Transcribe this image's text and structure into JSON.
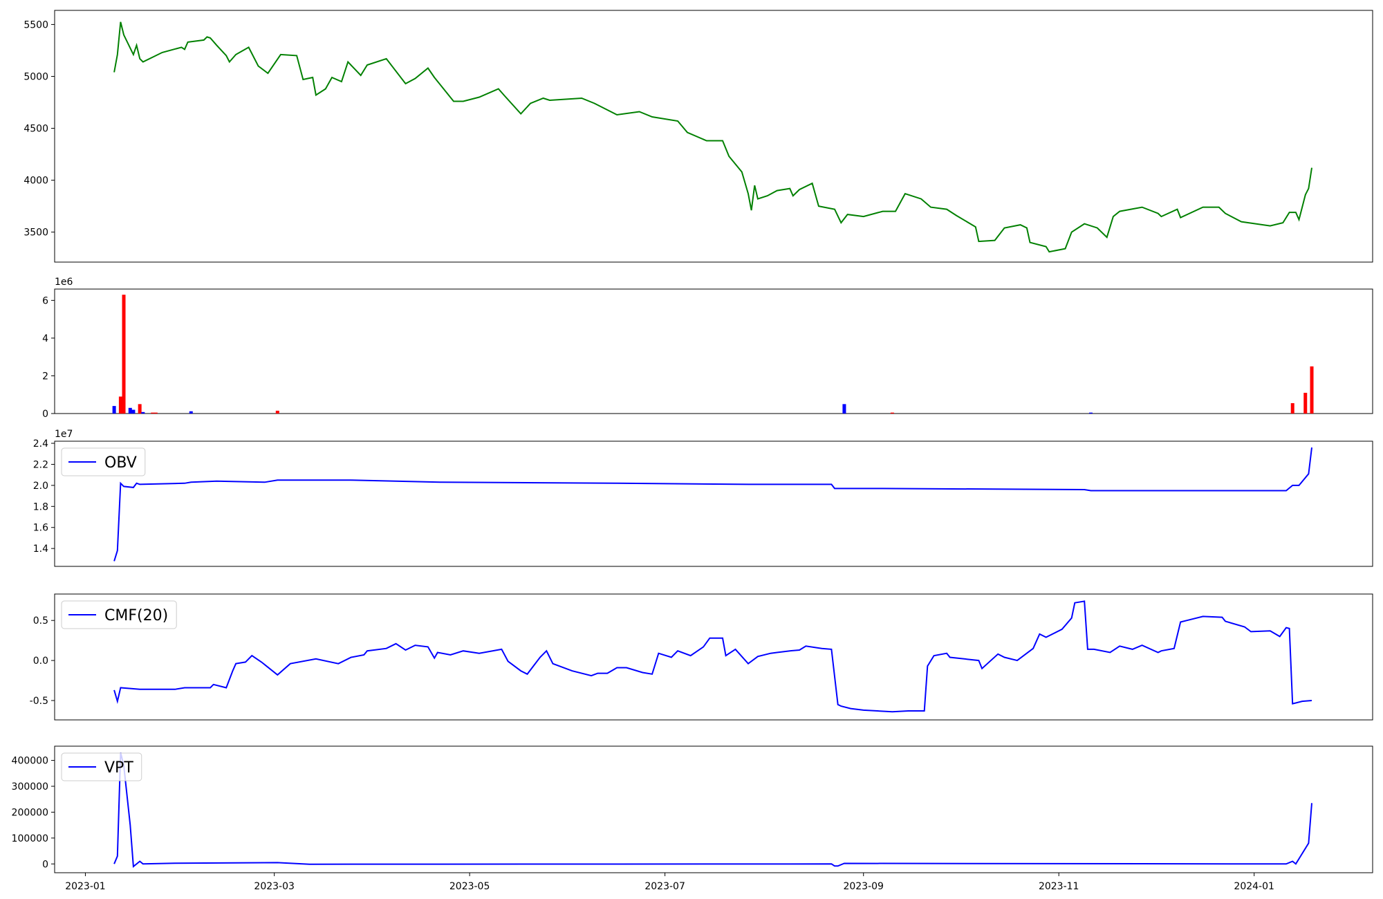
{
  "chart_data": [
    {
      "type": "line",
      "color": "green",
      "x": [
        9,
        10,
        11,
        12,
        15,
        16,
        17,
        18,
        24,
        30,
        31,
        32,
        37,
        38,
        39,
        41,
        44,
        45,
        47,
        51,
        54,
        57,
        61,
        66,
        68,
        71,
        72,
        75,
        77,
        80,
        82,
        86,
        88,
        94,
        100,
        103,
        107,
        109,
        115,
        118,
        123,
        129,
        131,
        136,
        139,
        143,
        145,
        155,
        159,
        166,
        173,
        177,
        185,
        188,
        194,
        199,
        201,
        205,
        207,
        208,
        209,
        210,
        213,
        216,
        220,
        221,
        223,
        227,
        229,
        234,
        236,
        238,
        243,
        249,
        253,
        256,
        261,
        264,
        269,
        272,
        278,
        279,
        284,
        287,
        292,
        294,
        295,
        300,
        301,
        306,
        308,
        312,
        316,
        319,
        321,
        323,
        330,
        335,
        336,
        341,
        342,
        349,
        354,
        356,
        361,
        370,
        374,
        376,
        378,
        379,
        381,
        382,
        383
      ],
      "values": [
        5040,
        5210,
        5525,
        5400,
        5210,
        5300,
        5170,
        5140,
        5230,
        5280,
        5260,
        5330,
        5350,
        5380,
        5370,
        5300,
        5200,
        5140,
        5210,
        5280,
        5100,
        5030,
        5210,
        5200,
        4970,
        4990,
        4820,
        4880,
        4990,
        4950,
        5140,
        5010,
        5110,
        5170,
        4930,
        4980,
        5080,
        4990,
        4760,
        4760,
        4800,
        4880,
        4810,
        4640,
        4740,
        4790,
        4770,
        4790,
        4740,
        4630,
        4660,
        4610,
        4570,
        4460,
        4380,
        4380,
        4230,
        4080,
        3870,
        3710,
        3950,
        3820,
        3850,
        3900,
        3920,
        3850,
        3910,
        3970,
        3750,
        3720,
        3590,
        3670,
        3650,
        3700,
        3700,
        3870,
        3820,
        3740,
        3720,
        3660,
        3550,
        3410,
        3420,
        3540,
        3570,
        3540,
        3400,
        3360,
        3310,
        3340,
        3500,
        3580,
        3540,
        3450,
        3650,
        3700,
        3740,
        3680,
        3650,
        3720,
        3640,
        3740,
        3740,
        3680,
        3600,
        3560,
        3590,
        3690,
        3690,
        3620,
        3860,
        3920,
        4120
      ],
      "xlim": [
        -9.6,
        402
      ],
      "ylim": [
        3211,
        5636
      ],
      "yticks": [
        3500,
        4000,
        4500,
        5000,
        5500
      ]
    },
    {
      "type": "bar",
      "offset_label": "1e6",
      "x": [
        9,
        11,
        12,
        14,
        15,
        17,
        18,
        21,
        22,
        33,
        60,
        237,
        252,
        314,
        377,
        381,
        383
      ],
      "values": [
        0.4,
        0.9,
        6.3,
        0.3,
        0.2,
        0.5,
        0.08,
        0.05,
        0.05,
        0.12,
        0.15,
        0.5,
        0.05,
        0.05,
        0.55,
        1.1,
        2.5
      ],
      "colors": [
        "blue",
        "red",
        "red",
        "blue",
        "blue",
        "red",
        "blue",
        "red",
        "red",
        "blue",
        "red",
        "blue",
        "red",
        "blue",
        "red",
        "red",
        "red"
      ],
      "xlim": [
        -9.6,
        402
      ],
      "ylim": [
        0,
        6.6
      ],
      "yticks": [
        0,
        2,
        4,
        6
      ]
    },
    {
      "type": "line",
      "offset_label": "1e7",
      "legend": "upper left",
      "x": [
        9,
        10,
        11,
        12,
        15,
        16,
        17,
        31,
        33,
        41,
        56,
        60,
        83,
        111,
        166,
        207,
        233,
        234,
        249,
        312,
        314,
        375,
        377,
        379,
        382,
        383
      ],
      "series": [
        {
          "name": "OBV",
          "color": "blue",
          "values": [
            1.28,
            1.38,
            2.02,
            1.99,
            1.98,
            2.02,
            2.01,
            2.02,
            2.03,
            2.04,
            2.03,
            2.05,
            2.05,
            2.03,
            2.02,
            2.01,
            2.01,
            1.97,
            1.97,
            1.96,
            1.95,
            1.95,
            2.0,
            2.0,
            2.11,
            2.36
          ]
        }
      ],
      "xlim": [
        -9.6,
        402
      ],
      "ylim": [
        1.23,
        2.42
      ],
      "yticks": [
        1.4,
        1.6,
        1.8,
        {
          "value": 2,
          "label": "2.0"
        },
        2.2,
        2.4
      ]
    },
    {
      "type": "line",
      "legend": "upper left",
      "x": [
        9,
        10,
        11,
        17,
        28,
        31,
        39,
        40,
        44,
        46,
        47,
        50,
        52,
        55,
        60,
        64,
        72,
        79,
        83,
        87,
        88,
        94,
        97,
        100,
        103,
        107,
        109,
        110,
        114,
        118,
        123,
        130,
        132,
        136,
        138,
        142,
        144,
        146,
        152,
        158,
        160,
        163,
        166,
        169,
        174,
        177,
        179,
        183,
        185,
        189,
        193,
        195,
        199,
        200,
        203,
        207,
        210,
        214,
        216,
        220,
        223,
        225,
        230,
        233,
        235,
        236,
        239,
        243,
        252,
        257,
        262,
        263,
        265,
        269,
        270,
        279,
        280,
        285,
        287,
        291,
        293,
        296,
        298,
        300,
        305,
        308,
        309,
        312,
        313,
        315,
        320,
        323,
        327,
        330,
        335,
        336,
        340,
        342,
        344,
        349,
        355,
        356,
        362,
        364,
        370,
        373,
        375,
        376,
        377,
        378,
        380,
        383
      ],
      "series": [
        {
          "name": "CMF(20)",
          "color": "blue",
          "values": [
            -0.37,
            -0.51,
            -0.34,
            -0.36,
            -0.36,
            -0.34,
            -0.34,
            -0.3,
            -0.34,
            -0.13,
            -0.04,
            -0.02,
            0.06,
            -0.02,
            -0.18,
            -0.04,
            0.02,
            -0.04,
            0.04,
            0.07,
            0.12,
            0.15,
            0.21,
            0.13,
            0.19,
            0.17,
            0.03,
            0.1,
            0.07,
            0.12,
            0.09,
            0.14,
            -0.01,
            -0.13,
            -0.17,
            0.04,
            0.12,
            -0.04,
            -0.13,
            -0.19,
            -0.16,
            -0.16,
            -0.09,
            -0.09,
            -0.15,
            -0.17,
            0.09,
            0.04,
            0.12,
            0.06,
            0.17,
            0.28,
            0.28,
            0.06,
            0.14,
            -0.04,
            0.05,
            0.09,
            0.1,
            0.12,
            0.13,
            0.18,
            0.15,
            0.14,
            -0.55,
            -0.57,
            -0.6,
            -0.62,
            -0.64,
            -0.63,
            -0.63,
            -0.07,
            0.06,
            0.09,
            0.04,
            0,
            -0.1,
            0.08,
            0.04,
            0,
            0.06,
            0.15,
            0.33,
            0.29,
            0.39,
            0.53,
            0.72,
            0.74,
            0.14,
            0.14,
            0.1,
            0.18,
            0.14,
            0.19,
            0.1,
            0.12,
            0.15,
            0.48,
            0.5,
            0.55,
            0.54,
            0.49,
            0.42,
            0.36,
            0.37,
            0.3,
            0.41,
            0.4,
            -0.54,
            -0.53,
            -0.51,
            -0.5
          ]
        }
      ],
      "xlim": [
        -9.6,
        402
      ],
      "ylim": [
        -0.742,
        0.83
      ],
      "yticks": [
        -0.5,
        {
          "value": 0,
          "label": "0.0"
        },
        0.5
      ]
    },
    {
      "type": "line",
      "legend": "upper left",
      "x": [
        9,
        10,
        11,
        12,
        14,
        15,
        17,
        18,
        28,
        60,
        70,
        233,
        234,
        235,
        237,
        375,
        377,
        378,
        382,
        383
      ],
      "series": [
        {
          "name": "VPT",
          "color": "blue",
          "values": [
            0,
            30000,
            430000,
            380000,
            150000,
            -10000,
            10000,
            0,
            3000,
            5000,
            -1000,
            0,
            -8000,
            -8000,
            2000,
            0,
            10000,
            0,
            80000,
            235000
          ]
        }
      ],
      "xlim": [
        -9.6,
        402
      ],
      "ylim": [
        -34000,
        455000
      ],
      "yticks": [
        0,
        100000,
        200000,
        300000,
        400000
      ],
      "xticks": [
        {
          "value": 0,
          "label": "2023-01"
        },
        {
          "value": 59,
          "label": "2023-03"
        },
        {
          "value": 120,
          "label": "2023-05"
        },
        {
          "value": 181,
          "label": "2023-07"
        },
        {
          "value": 243,
          "label": "2023-09"
        },
        {
          "value": 304,
          "label": "2023-11"
        },
        {
          "value": 365,
          "label": "2024-01"
        }
      ]
    }
  ]
}
